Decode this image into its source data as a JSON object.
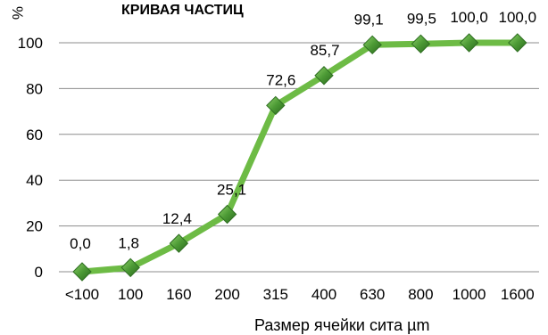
{
  "chart_data": {
    "type": "line",
    "title": "КРИВАЯ  ЧАСТИЦ",
    "ylabel": "%",
    "xlabel": "Размер ячейки сита µm",
    "categories": [
      "<100",
      "100",
      "160",
      "200",
      "315",
      "400",
      "630",
      "800",
      "1000",
      "1600"
    ],
    "series": [
      {
        "values": [
          0.0,
          1.8,
          12.4,
          25.1,
          72.6,
          85.7,
          99.1,
          99.5,
          100.0,
          100.0
        ],
        "labels": [
          "0,0",
          "1,8",
          "12,4",
          "25,1",
          "72,6",
          "85,7",
          "99,1",
          "99,5",
          "100,0",
          "100,0"
        ],
        "color": "#6dbb45",
        "marker_color": "#3e8a2c"
      }
    ],
    "ylim": [
      0,
      100
    ],
    "yticks": [
      "0",
      "20",
      "40",
      "60",
      "80",
      "100"
    ],
    "grid": true,
    "legend": "none"
  }
}
